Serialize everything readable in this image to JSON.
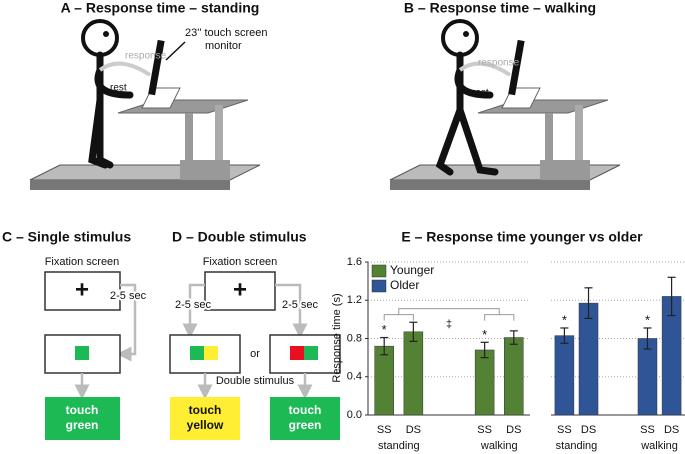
{
  "panel_a": {
    "title": "A – Response time – standing",
    "monitor_label": [
      "23'' touch screen",
      "monitor"
    ],
    "response_label": "response",
    "rest_label": "rest"
  },
  "panel_b": {
    "title": "B – Response time – walking",
    "response_label": "response",
    "rest_label": "rest"
  },
  "panel_c": {
    "title": "C – Single stimulus",
    "fixation_label": "Fixation screen",
    "cross": "+",
    "delay_label": "2-5 sec",
    "response": [
      "touch",
      "green"
    ]
  },
  "panel_d": {
    "title": "D – Double stimulus",
    "fixation_label": "Fixation screen",
    "cross": "+",
    "delay_labels": [
      "2-5 sec",
      "2-5 sec"
    ],
    "or_label": "or",
    "stimulus_label": "Double stimulus",
    "responses": [
      [
        "touch",
        "yellow"
      ],
      [
        "touch",
        "green"
      ]
    ]
  },
  "chart_data": {
    "type": "bar",
    "title": "E – Response time younger vs older",
    "y_label": "Response time (s)",
    "categories": [
      "SS",
      "DS",
      "SS",
      "DS"
    ],
    "groups": [
      "standing",
      "walking"
    ],
    "ylim": [
      0,
      1.6
    ],
    "yticks": [
      {
        "value": 0,
        "label": "0.0"
      },
      0.4,
      0.8,
      1.2,
      1.6
    ],
    "grid": true,
    "legend": "top-left",
    "series": [
      {
        "name": "Younger",
        "color": "#548235",
        "values": [
          0.72,
          0.87,
          0.68,
          0.81
        ],
        "errors": [
          0.09,
          0.1,
          0.08,
          0.07
        ],
        "value_annotations": [
          "*",
          null,
          "*",
          null
        ]
      },
      {
        "name": "Older",
        "color": "#2f5597",
        "values": [
          0.83,
          1.17,
          0.8,
          1.24
        ],
        "errors": [
          0.08,
          0.16,
          0.11,
          0.2
        ],
        "value_annotations": [
          "*",
          null,
          "*",
          null
        ]
      }
    ],
    "comparison_annotation": "‡"
  }
}
